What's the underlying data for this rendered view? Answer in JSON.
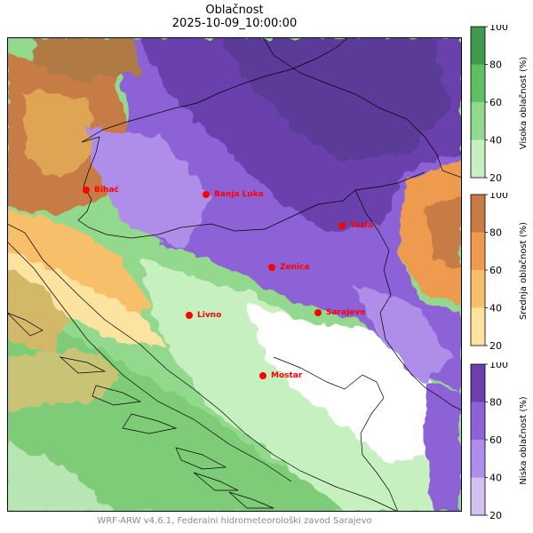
{
  "title": {
    "line1": "Oblačnost",
    "line2": "2025-10-09_10:00:00"
  },
  "credit": "WRF-ARW v4.6.1, Federalni hidrometeorološki zavod Sarajevo",
  "cities": [
    {
      "name": "Bihać"
    },
    {
      "name": "Banja Luka"
    },
    {
      "name": "Tuzla"
    },
    {
      "name": "Zenica"
    },
    {
      "name": "Sarajevo"
    },
    {
      "name": "Livno"
    },
    {
      "name": "Mostar"
    }
  ],
  "city_marker_color": "#ff0000",
  "colorbars": [
    {
      "id": "high",
      "label": "Visoka oblačnost (%)",
      "ticks": [
        "20",
        "40",
        "60",
        "80",
        "100"
      ],
      "colors": [
        "#c7f0c0",
        "#93d98d",
        "#5fbf63",
        "#3f9a4c"
      ]
    },
    {
      "id": "mid",
      "label": "Srednja oblačnost (%)",
      "ticks": [
        "20",
        "40",
        "60",
        "80",
        "100"
      ],
      "colors": [
        "#fde3a0",
        "#f8bf6a",
        "#ee9a4f",
        "#c87c45"
      ]
    },
    {
      "id": "low",
      "label": "Niska oblačnost (%)",
      "ticks": [
        "20",
        "40",
        "60",
        "80",
        "100"
      ],
      "colors": [
        "#d2c2f3",
        "#ae8ee9",
        "#8c62d6",
        "#6b40ad"
      ]
    }
  ]
}
